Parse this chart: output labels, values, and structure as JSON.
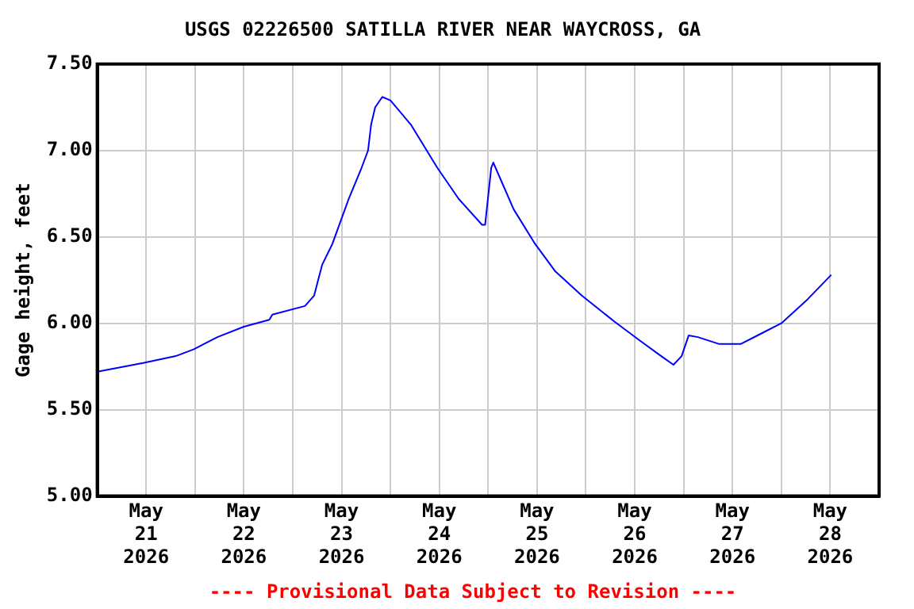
{
  "chart_data": {
    "type": "line",
    "title": "USGS 02226500 SATILLA RIVER NEAR WAYCROSS, GA",
    "ylabel": "Gage height, feet",
    "annotations": [
      "---- Provisional Data Subject to Revision ----"
    ],
    "x": [
      "2026-05-21T00:00",
      "2026-05-21T11:15",
      "2026-05-21T19:15",
      "2026-05-21T23:45",
      "2026-05-22T05:30",
      "2026-05-22T12:00",
      "2026-05-22T18:15",
      "2026-05-22T19:00",
      "2026-05-23T03:00",
      "2026-05-23T05:15",
      "2026-05-23T07:15",
      "2026-05-23T09:45",
      "2026-05-23T13:45",
      "2026-05-23T16:45",
      "2026-05-23T18:30",
      "2026-05-23T19:15",
      "2026-05-23T20:15",
      "2026-05-23T22:00",
      "2026-05-24T00:00",
      "2026-05-24T05:00",
      "2026-05-24T11:30",
      "2026-05-24T16:45",
      "2026-05-24T22:30",
      "2026-05-24T23:15",
      "2026-05-25T00:45",
      "2026-05-25T01:15",
      "2026-05-25T06:15",
      "2026-05-25T11:30",
      "2026-05-25T16:30",
      "2026-05-25T23:00",
      "2026-05-26T07:00",
      "2026-05-26T13:15",
      "2026-05-26T18:30",
      "2026-05-26T21:30",
      "2026-05-26T23:30",
      "2026-05-27T01:15",
      "2026-05-27T03:30",
      "2026-05-27T08:45",
      "2026-05-27T14:00",
      "2026-05-27T19:00",
      "2026-05-28T00:00",
      "2026-05-28T06:30",
      "2026-05-28T12:15"
    ],
    "series": [
      {
        "color": "#0000ff",
        "values": [
          5.72,
          5.77,
          5.81,
          5.85,
          5.92,
          5.98,
          6.02,
          6.05,
          6.1,
          6.16,
          6.34,
          6.46,
          6.72,
          6.89,
          7.0,
          7.15,
          7.25,
          7.31,
          7.29,
          7.15,
          6.9,
          6.72,
          6.57,
          6.57,
          6.9,
          6.93,
          6.66,
          6.46,
          6.3,
          6.16,
          6.01,
          5.9,
          5.81,
          5.76,
          5.81,
          5.93,
          5.92,
          5.88,
          5.88,
          5.94,
          6.0,
          6.14,
          6.28
        ]
      }
    ],
    "xlim": [
      "2026-05-21T00:00",
      "2026-05-29T00:00"
    ],
    "xticks": [
      {
        "value": "2026-05-21T12:00",
        "label": "May\n21\n2026"
      },
      {
        "value": "2026-05-22T00:00",
        "label": null
      },
      {
        "value": "2026-05-22T12:00",
        "label": "May\n22\n2026"
      },
      {
        "value": "2026-05-23T00:00",
        "label": null
      },
      {
        "value": "2026-05-23T12:00",
        "label": "May\n23\n2026"
      },
      {
        "value": "2026-05-24T00:00",
        "label": null
      },
      {
        "value": "2026-05-24T12:00",
        "label": "May\n24\n2026"
      },
      {
        "value": "2026-05-25T00:00",
        "label": null
      },
      {
        "value": "2026-05-25T12:00",
        "label": "May\n25\n2026"
      },
      {
        "value": "2026-05-26T00:00",
        "label": null
      },
      {
        "value": "2026-05-26T12:00",
        "label": "May\n26\n2026"
      },
      {
        "value": "2026-05-27T00:00",
        "label": null
      },
      {
        "value": "2026-05-27T12:00",
        "label": "May\n27\n2026"
      },
      {
        "value": "2026-05-28T00:00",
        "label": null
      },
      {
        "value": "2026-05-28T12:00",
        "label": "May\n28\n2026"
      }
    ],
    "ylim": [
      5.0,
      7.5
    ],
    "yticks": [
      {
        "value": 5.0,
        "label": "5.00"
      },
      {
        "value": 5.5,
        "label": "5.50"
      },
      {
        "value": 6.0,
        "label": "6.00"
      },
      {
        "value": 6.5,
        "label": "6.50"
      },
      {
        "value": 7.0,
        "label": "7.00"
      },
      {
        "value": 7.5,
        "label": "7.50"
      }
    ],
    "grid": true,
    "legend": false,
    "marker": "none",
    "line_style": "solid"
  }
}
